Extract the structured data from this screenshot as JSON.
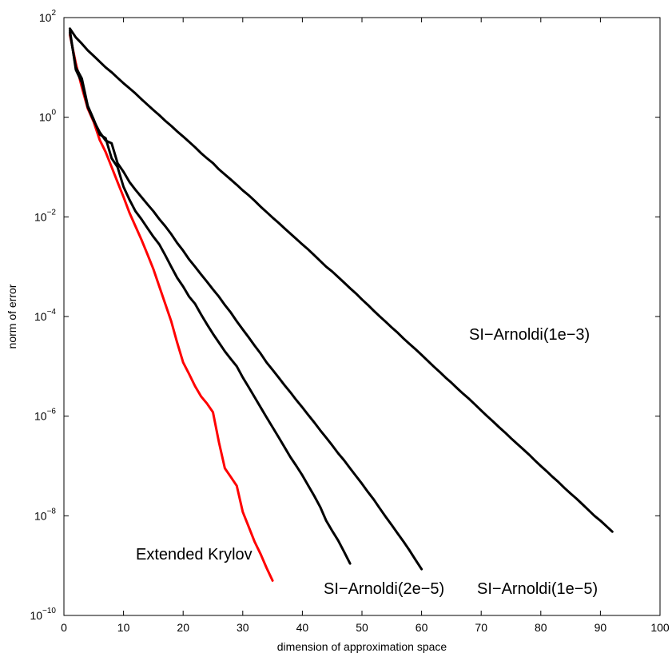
{
  "chart_data": {
    "type": "line",
    "title": "",
    "xlabel": "dimension of approximation space",
    "ylabel": "norm of error",
    "xlim": [
      0,
      100
    ],
    "ylim": [
      1e-10,
      100
    ],
    "yscale": "log",
    "grid": false,
    "legend": "none",
    "x_ticks": [
      "0",
      "10",
      "20",
      "30",
      "40",
      "50",
      "60",
      "70",
      "80",
      "90",
      "100"
    ],
    "y_tick_exponents": [
      "2",
      "0",
      "−2",
      "−4",
      "−6",
      "−8",
      "−10"
    ],
    "series": [
      {
        "label": "Extended Krylov",
        "color": "#ff0000",
        "points": [
          [
            1,
            45
          ],
          [
            2,
            12
          ],
          [
            3,
            4
          ],
          [
            4,
            1.5
          ],
          [
            5,
            0.8
          ],
          [
            6,
            0.35
          ],
          [
            7,
            0.2
          ],
          [
            8,
            0.1
          ],
          [
            9,
            0.05
          ],
          [
            10,
            0.025
          ],
          [
            11,
            0.012
          ],
          [
            12,
            0.0065
          ],
          [
            13,
            0.0035
          ],
          [
            14,
            0.0018
          ],
          [
            15,
            0.0009
          ],
          [
            16,
            0.0004
          ],
          [
            17,
            0.00018
          ],
          [
            18,
            8e-05
          ],
          [
            19,
            3e-05
          ],
          [
            20,
            1.2e-05
          ],
          [
            21,
            7e-06
          ],
          [
            22,
            4e-06
          ],
          [
            23,
            2.5e-06
          ],
          [
            24,
            1.8e-06
          ],
          [
            25,
            1.2e-06
          ],
          [
            26,
            3e-07
          ],
          [
            27,
            9e-08
          ],
          [
            28,
            6e-08
          ],
          [
            29,
            4e-08
          ],
          [
            30,
            1.2e-08
          ],
          [
            31,
            6e-09
          ],
          [
            32,
            3e-09
          ],
          [
            33,
            1.7e-09
          ],
          [
            34,
            9e-10
          ],
          [
            35,
            5e-10
          ]
        ]
      },
      {
        "label": "SI−Arnoldi(2e−5)",
        "color": "#000000",
        "points": [
          [
            1,
            50
          ],
          [
            2,
            10
          ],
          [
            3,
            6
          ],
          [
            4,
            1.7
          ],
          [
            5,
            0.9
          ],
          [
            6,
            0.45
          ],
          [
            7,
            0.38
          ],
          [
            8,
            0.15
          ],
          [
            9,
            0.1
          ],
          [
            10,
            0.04
          ],
          [
            11,
            0.022
          ],
          [
            12,
            0.013
          ],
          [
            13,
            0.009
          ],
          [
            14,
            0.006
          ],
          [
            15,
            0.004
          ],
          [
            16,
            0.0028
          ],
          [
            17,
            0.0017
          ],
          [
            18,
            0.001
          ],
          [
            19,
            0.0006
          ],
          [
            20,
            0.0004
          ],
          [
            21,
            0.00025
          ],
          [
            22,
            0.00018
          ],
          [
            23,
            0.00011
          ],
          [
            24,
            7e-05
          ],
          [
            25,
            4.5e-05
          ],
          [
            26,
            3e-05
          ],
          [
            27,
            2e-05
          ],
          [
            28,
            1.4e-05
          ],
          [
            29,
            1e-05
          ],
          [
            30,
            6e-06
          ],
          [
            31,
            3.8e-06
          ],
          [
            32,
            2.4e-06
          ],
          [
            33,
            1.5e-06
          ],
          [
            34,
            9.5e-07
          ],
          [
            35,
            6e-07
          ],
          [
            36,
            3.8e-07
          ],
          [
            37,
            2.4e-07
          ],
          [
            38,
            1.5e-07
          ],
          [
            39,
            1e-07
          ],
          [
            40,
            6.5e-08
          ],
          [
            41,
            4e-08
          ],
          [
            42,
            2.5e-08
          ],
          [
            43,
            1.5e-08
          ],
          [
            44,
            8e-09
          ],
          [
            45,
            5e-09
          ],
          [
            46,
            3.2e-09
          ],
          [
            47,
            1.9e-09
          ],
          [
            48,
            1.1e-09
          ]
        ]
      },
      {
        "label": "SI−Arnoldi(1e−5)",
        "color": "#000000",
        "points": [
          [
            1,
            55
          ],
          [
            2,
            9
          ],
          [
            3,
            5
          ],
          [
            4,
            1.6
          ],
          [
            5,
            0.85
          ],
          [
            6,
            0.5
          ],
          [
            7,
            0.34
          ],
          [
            8,
            0.3
          ],
          [
            9,
            0.12
          ],
          [
            10,
            0.08
          ],
          [
            11,
            0.05
          ],
          [
            12,
            0.035
          ],
          [
            13,
            0.025
          ],
          [
            14,
            0.018
          ],
          [
            15,
            0.013
          ],
          [
            16,
            0.009
          ],
          [
            17,
            0.0065
          ],
          [
            18,
            0.0045
          ],
          [
            19,
            0.003
          ],
          [
            20,
            0.0021
          ],
          [
            21,
            0.0014
          ],
          [
            22,
            0.001
          ],
          [
            23,
            0.0007
          ],
          [
            24,
            0.0005
          ],
          [
            25,
            0.00035
          ],
          [
            26,
            0.00025
          ],
          [
            27,
            0.00017
          ],
          [
            28,
            0.00012
          ],
          [
            29,
            8e-05
          ],
          [
            30,
            5.5e-05
          ],
          [
            31,
            3.8e-05
          ],
          [
            32,
            2.6e-05
          ],
          [
            33,
            1.8e-05
          ],
          [
            34,
            1.2e-05
          ],
          [
            35,
            8.5e-06
          ],
          [
            36,
            6e-06
          ],
          [
            37,
            4.2e-06
          ],
          [
            38,
            3e-06
          ],
          [
            39,
            2.1e-06
          ],
          [
            40,
            1.5e-06
          ],
          [
            41,
            1.05e-06
          ],
          [
            42,
            7.5e-07
          ],
          [
            43,
            5.2e-07
          ],
          [
            44,
            3.7e-07
          ],
          [
            45,
            2.6e-07
          ],
          [
            46,
            1.8e-07
          ],
          [
            47,
            1.3e-07
          ],
          [
            48,
            9e-08
          ],
          [
            49,
            6.3e-08
          ],
          [
            50,
            4.4e-08
          ],
          [
            51,
            3e-08
          ],
          [
            52,
            2.1e-08
          ],
          [
            53,
            1.4e-08
          ],
          [
            54,
            9.5e-09
          ],
          [
            55,
            6.5e-09
          ],
          [
            56,
            4.4e-09
          ],
          [
            57,
            3e-09
          ],
          [
            58,
            2e-09
          ],
          [
            59,
            1.3e-09
          ],
          [
            60,
            8.5e-10
          ]
        ]
      },
      {
        "label": "SI−Arnoldi(1e−3)",
        "color": "#000000",
        "points": [
          [
            1,
            60
          ],
          [
            2,
            40
          ],
          [
            3,
            30
          ],
          [
            4,
            22
          ],
          [
            5,
            17
          ],
          [
            6,
            13
          ],
          [
            7,
            10
          ],
          [
            8,
            8
          ],
          [
            9,
            6.2
          ],
          [
            10,
            4.8
          ],
          [
            11,
            3.8
          ],
          [
            12,
            3
          ],
          [
            13,
            2.3
          ],
          [
            14,
            1.8
          ],
          [
            15,
            1.4
          ],
          [
            16,
            1.1
          ],
          [
            17,
            0.85
          ],
          [
            18,
            0.67
          ],
          [
            19,
            0.52
          ],
          [
            20,
            0.41
          ],
          [
            21,
            0.32
          ],
          [
            22,
            0.25
          ],
          [
            23,
            0.19
          ],
          [
            24,
            0.15
          ],
          [
            25,
            0.12
          ],
          [
            26,
            0.09
          ],
          [
            27,
            0.071
          ],
          [
            28,
            0.056
          ],
          [
            29,
            0.044
          ],
          [
            30,
            0.034
          ],
          [
            31,
            0.027
          ],
          [
            32,
            0.021
          ],
          [
            33,
            0.016
          ],
          [
            34,
            0.0125
          ],
          [
            35,
            0.0097
          ],
          [
            36,
            0.0076
          ],
          [
            37,
            0.0059
          ],
          [
            38,
            0.0046
          ],
          [
            39,
            0.0036
          ],
          [
            40,
            0.0028
          ],
          [
            41,
            0.0022
          ],
          [
            42,
            0.0017
          ],
          [
            43,
            0.0013
          ],
          [
            44,
            0.001
          ],
          [
            45,
            0.0008
          ],
          [
            46,
            0.00062
          ],
          [
            47,
            0.00048
          ],
          [
            48,
            0.00037
          ],
          [
            49,
            0.00029
          ],
          [
            50,
            0.00022
          ],
          [
            51,
            0.00017
          ],
          [
            52,
            0.00013
          ],
          [
            53,
            0.0001
          ],
          [
            54,
            7.8e-05
          ],
          [
            55,
            6e-05
          ],
          [
            56,
            4.7e-05
          ],
          [
            57,
            3.6e-05
          ],
          [
            58,
            2.8e-05
          ],
          [
            59,
            2.2e-05
          ],
          [
            60,
            1.7e-05
          ],
          [
            61,
            1.3e-05
          ],
          [
            62,
            1e-05
          ],
          [
            63,
            7.8e-06
          ],
          [
            64,
            6e-06
          ],
          [
            65,
            4.7e-06
          ],
          [
            66,
            3.6e-06
          ],
          [
            67,
            2.8e-06
          ],
          [
            68,
            2.2e-06
          ],
          [
            69,
            1.7e-06
          ],
          [
            70,
            1.3e-06
          ],
          [
            71,
            1e-06
          ],
          [
            72,
            7.8e-07
          ],
          [
            73,
            6e-07
          ],
          [
            74,
            4.7e-07
          ],
          [
            75,
            3.6e-07
          ],
          [
            76,
            2.8e-07
          ],
          [
            77,
            2.2e-07
          ],
          [
            78,
            1.7e-07
          ],
          [
            79,
            1.3e-07
          ],
          [
            80,
            1e-07
          ],
          [
            81,
            7.8e-08
          ],
          [
            82,
            6e-08
          ],
          [
            83,
            4.7e-08
          ],
          [
            84,
            3.6e-08
          ],
          [
            85,
            2.8e-08
          ],
          [
            86,
            2.2e-08
          ],
          [
            87,
            1.7e-08
          ],
          [
            88,
            1.3e-08
          ],
          [
            89,
            1e-08
          ],
          [
            90,
            8e-09
          ],
          [
            91,
            6.2e-09
          ],
          [
            92,
            4.8e-09
          ]
        ]
      }
    ]
  }
}
